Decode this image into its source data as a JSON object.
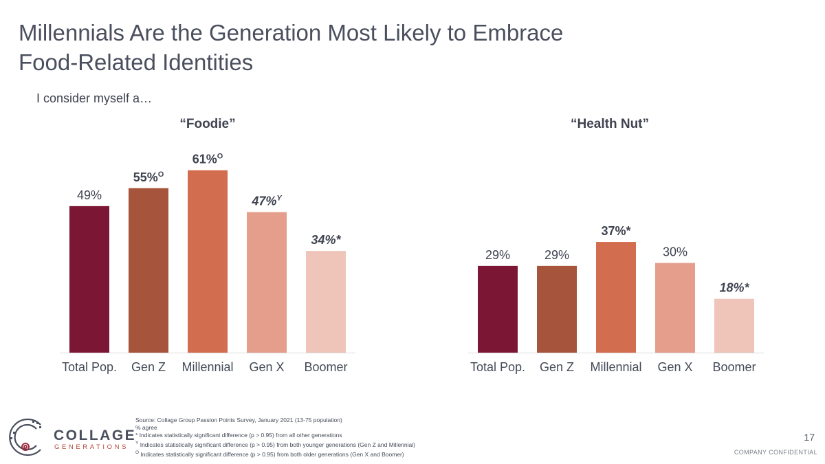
{
  "slide": {
    "title_line1": "Millennials Are the Generation Most Likely to Embrace",
    "title_line2": "Food-Related Identities",
    "subtitle": "I consider myself a…"
  },
  "colors": {
    "Total Pop.": "#7b1735",
    "Gen Z": "#a6553c",
    "Millennial": "#d36d50",
    "Gen X": "#e49e8b",
    "Boomer": "#efc5b9"
  },
  "chart_data": [
    {
      "type": "bar",
      "title": "“Foodie”",
      "categories": [
        "Total Pop.",
        "Gen Z",
        "Millennial",
        "Gen X",
        "Boomer"
      ],
      "values": [
        49,
        55,
        61,
        47,
        34
      ],
      "unit": "%",
      "data_labels": [
        {
          "text": "49%",
          "marker": "",
          "bold": false,
          "italic": false
        },
        {
          "text": "55%",
          "marker": "O",
          "bold": true,
          "italic": false
        },
        {
          "text": "61%",
          "marker": "O",
          "bold": true,
          "italic": false
        },
        {
          "text": "47%",
          "marker": "Y",
          "bold": true,
          "italic": true
        },
        {
          "text": "34%*",
          "marker": "",
          "bold": true,
          "italic": true
        }
      ],
      "ylim": [
        0,
        100
      ],
      "grid": false,
      "legend": "none"
    },
    {
      "type": "bar",
      "title": "“Health Nut”",
      "categories": [
        "Total Pop.",
        "Gen Z",
        "Millennial",
        "Gen X",
        "Boomer"
      ],
      "values": [
        29,
        29,
        37,
        30,
        18
      ],
      "unit": "%",
      "data_labels": [
        {
          "text": "29%",
          "marker": "",
          "bold": false,
          "italic": false
        },
        {
          "text": "29%",
          "marker": "",
          "bold": false,
          "italic": false
        },
        {
          "text": "37%*",
          "marker": "",
          "bold": true,
          "italic": false
        },
        {
          "text": "30%",
          "marker": "",
          "bold": false,
          "italic": false
        },
        {
          "text": "18%*",
          "marker": "",
          "bold": true,
          "italic": true
        }
      ],
      "ylim": [
        0,
        100
      ],
      "grid": false,
      "legend": "none"
    }
  ],
  "footer": {
    "logo_word1": "COLLAGE",
    "logo_word2": "GENERATIONS",
    "source": "Source: Collage Group Passion Points Survey, January 2021 (13-75 population)",
    "agree": "% agree",
    "note_star_marker": "*",
    "note_star": " Indicates statistically significant difference (p > 0.95) from all other generations",
    "note_y_marker": "Y",
    "note_y": " Indicates statistically significant difference (p > 0.95) from both younger generations (Gen Z and Millennial)",
    "note_o_marker": "O",
    "note_o": " Indicates statistically significant difference (p > 0.95) from both older generations (Gen X and Boomer)",
    "page_number": "17",
    "confidential": "COMPANY CONFIDENTIAL"
  }
}
